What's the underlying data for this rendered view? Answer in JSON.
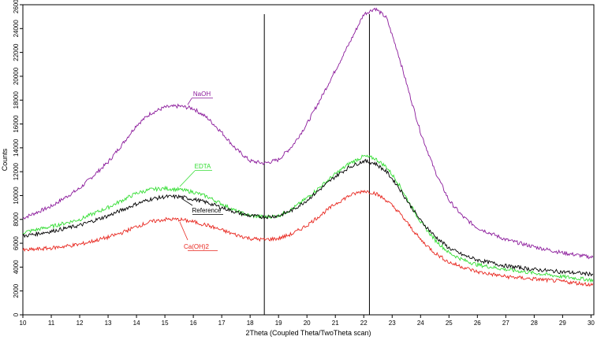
{
  "chart_data": {
    "type": "line",
    "title": "",
    "xlabel": "2Theta (Coupled Theta/TwoTheta scan)",
    "ylabel": "Counts",
    "xlim": [
      10,
      30.1
    ],
    "ylim": [
      0,
      26000
    ],
    "x_ticks": [
      10,
      11,
      12,
      13,
      14,
      15,
      16,
      17,
      18,
      19,
      20,
      21,
      22,
      23,
      24,
      25,
      26,
      27,
      28,
      29,
      30
    ],
    "y_ticks": [
      0,
      2000,
      4000,
      6000,
      8000,
      10000,
      12000,
      14000,
      16000,
      18000,
      20000,
      22000,
      24000,
      26000
    ],
    "grid": false,
    "markers": [
      18.5,
      22.2
    ],
    "series": [
      {
        "name": "NaOH",
        "color": "#8b1a9b",
        "x": [
          10,
          11,
          12,
          13,
          13.5,
          14,
          14.5,
          15,
          15.5,
          16,
          16.5,
          17,
          17.5,
          18,
          18.5,
          19,
          19.5,
          20,
          20.5,
          21,
          21.5,
          22,
          22.4,
          22.8,
          23.2,
          23.6,
          24,
          24.5,
          25,
          25.5,
          26,
          27,
          28,
          29,
          30.1
        ],
        "y": [
          8100,
          9100,
          10600,
          12800,
          14300,
          15900,
          16900,
          17400,
          17500,
          17300,
          16500,
          15300,
          13900,
          12900,
          12700,
          13000,
          14200,
          16000,
          18200,
          20500,
          22800,
          25200,
          25700,
          24900,
          22000,
          18600,
          15300,
          12100,
          9600,
          8200,
          7300,
          6300,
          5700,
          5200,
          4800
        ]
      },
      {
        "name": "EDTA",
        "color": "#33dd33",
        "x": [
          10,
          11,
          12,
          13,
          13.5,
          14,
          14.5,
          15,
          15.5,
          16,
          16.5,
          17,
          17.5,
          18,
          18.5,
          19,
          19.5,
          20,
          20.5,
          21,
          21.5,
          22,
          22.4,
          22.8,
          23.2,
          23.6,
          24,
          24.5,
          25,
          25.5,
          26,
          27,
          28,
          29,
          30.1
        ],
        "y": [
          6900,
          7400,
          8000,
          9000,
          9600,
          10200,
          10500,
          10600,
          10500,
          10300,
          9900,
          9300,
          8700,
          8300,
          8200,
          8300,
          8900,
          9800,
          10800,
          11800,
          12700,
          13300,
          13100,
          12400,
          11100,
          9400,
          7800,
          6300,
          5200,
          4600,
          4200,
          3800,
          3500,
          3200,
          2900
        ]
      },
      {
        "name": "Reference",
        "color": "#000000",
        "x": [
          10,
          11,
          12,
          13,
          13.5,
          14,
          14.5,
          15,
          15.5,
          16,
          16.5,
          17,
          17.5,
          18,
          18.5,
          19,
          19.5,
          20,
          20.5,
          21,
          21.5,
          22,
          22.4,
          22.8,
          23.2,
          23.6,
          24,
          24.5,
          25,
          25.5,
          26,
          27,
          28,
          29,
          30.1
        ],
        "y": [
          6600,
          7000,
          7500,
          8300,
          8800,
          9300,
          9700,
          9900,
          9900,
          9700,
          9400,
          9000,
          8600,
          8300,
          8200,
          8300,
          8800,
          9600,
          10600,
          11600,
          12400,
          12900,
          12700,
          12000,
          10800,
          9300,
          7900,
          6600,
          5600,
          5000,
          4600,
          4100,
          3800,
          3600,
          3400
        ]
      },
      {
        "name": "Ca(OH)2",
        "color": "#e8261e",
        "x": [
          10,
          11,
          12,
          13,
          13.5,
          14,
          14.5,
          15,
          15.5,
          16,
          16.5,
          17,
          17.5,
          18,
          18.5,
          19,
          19.5,
          20,
          20.5,
          21,
          21.5,
          22,
          22.4,
          22.8,
          23.2,
          23.6,
          24,
          24.5,
          25,
          25.5,
          26,
          27,
          28,
          29,
          30.1
        ],
        "y": [
          5400,
          5600,
          5900,
          6500,
          6900,
          7400,
          7800,
          8000,
          8000,
          7800,
          7500,
          7100,
          6700,
          6400,
          6300,
          6400,
          6800,
          7500,
          8400,
          9300,
          10000,
          10400,
          10200,
          9600,
          8700,
          7500,
          6300,
          5200,
          4400,
          4000,
          3600,
          3200,
          3000,
          2800,
          2500
        ]
      }
    ]
  }
}
